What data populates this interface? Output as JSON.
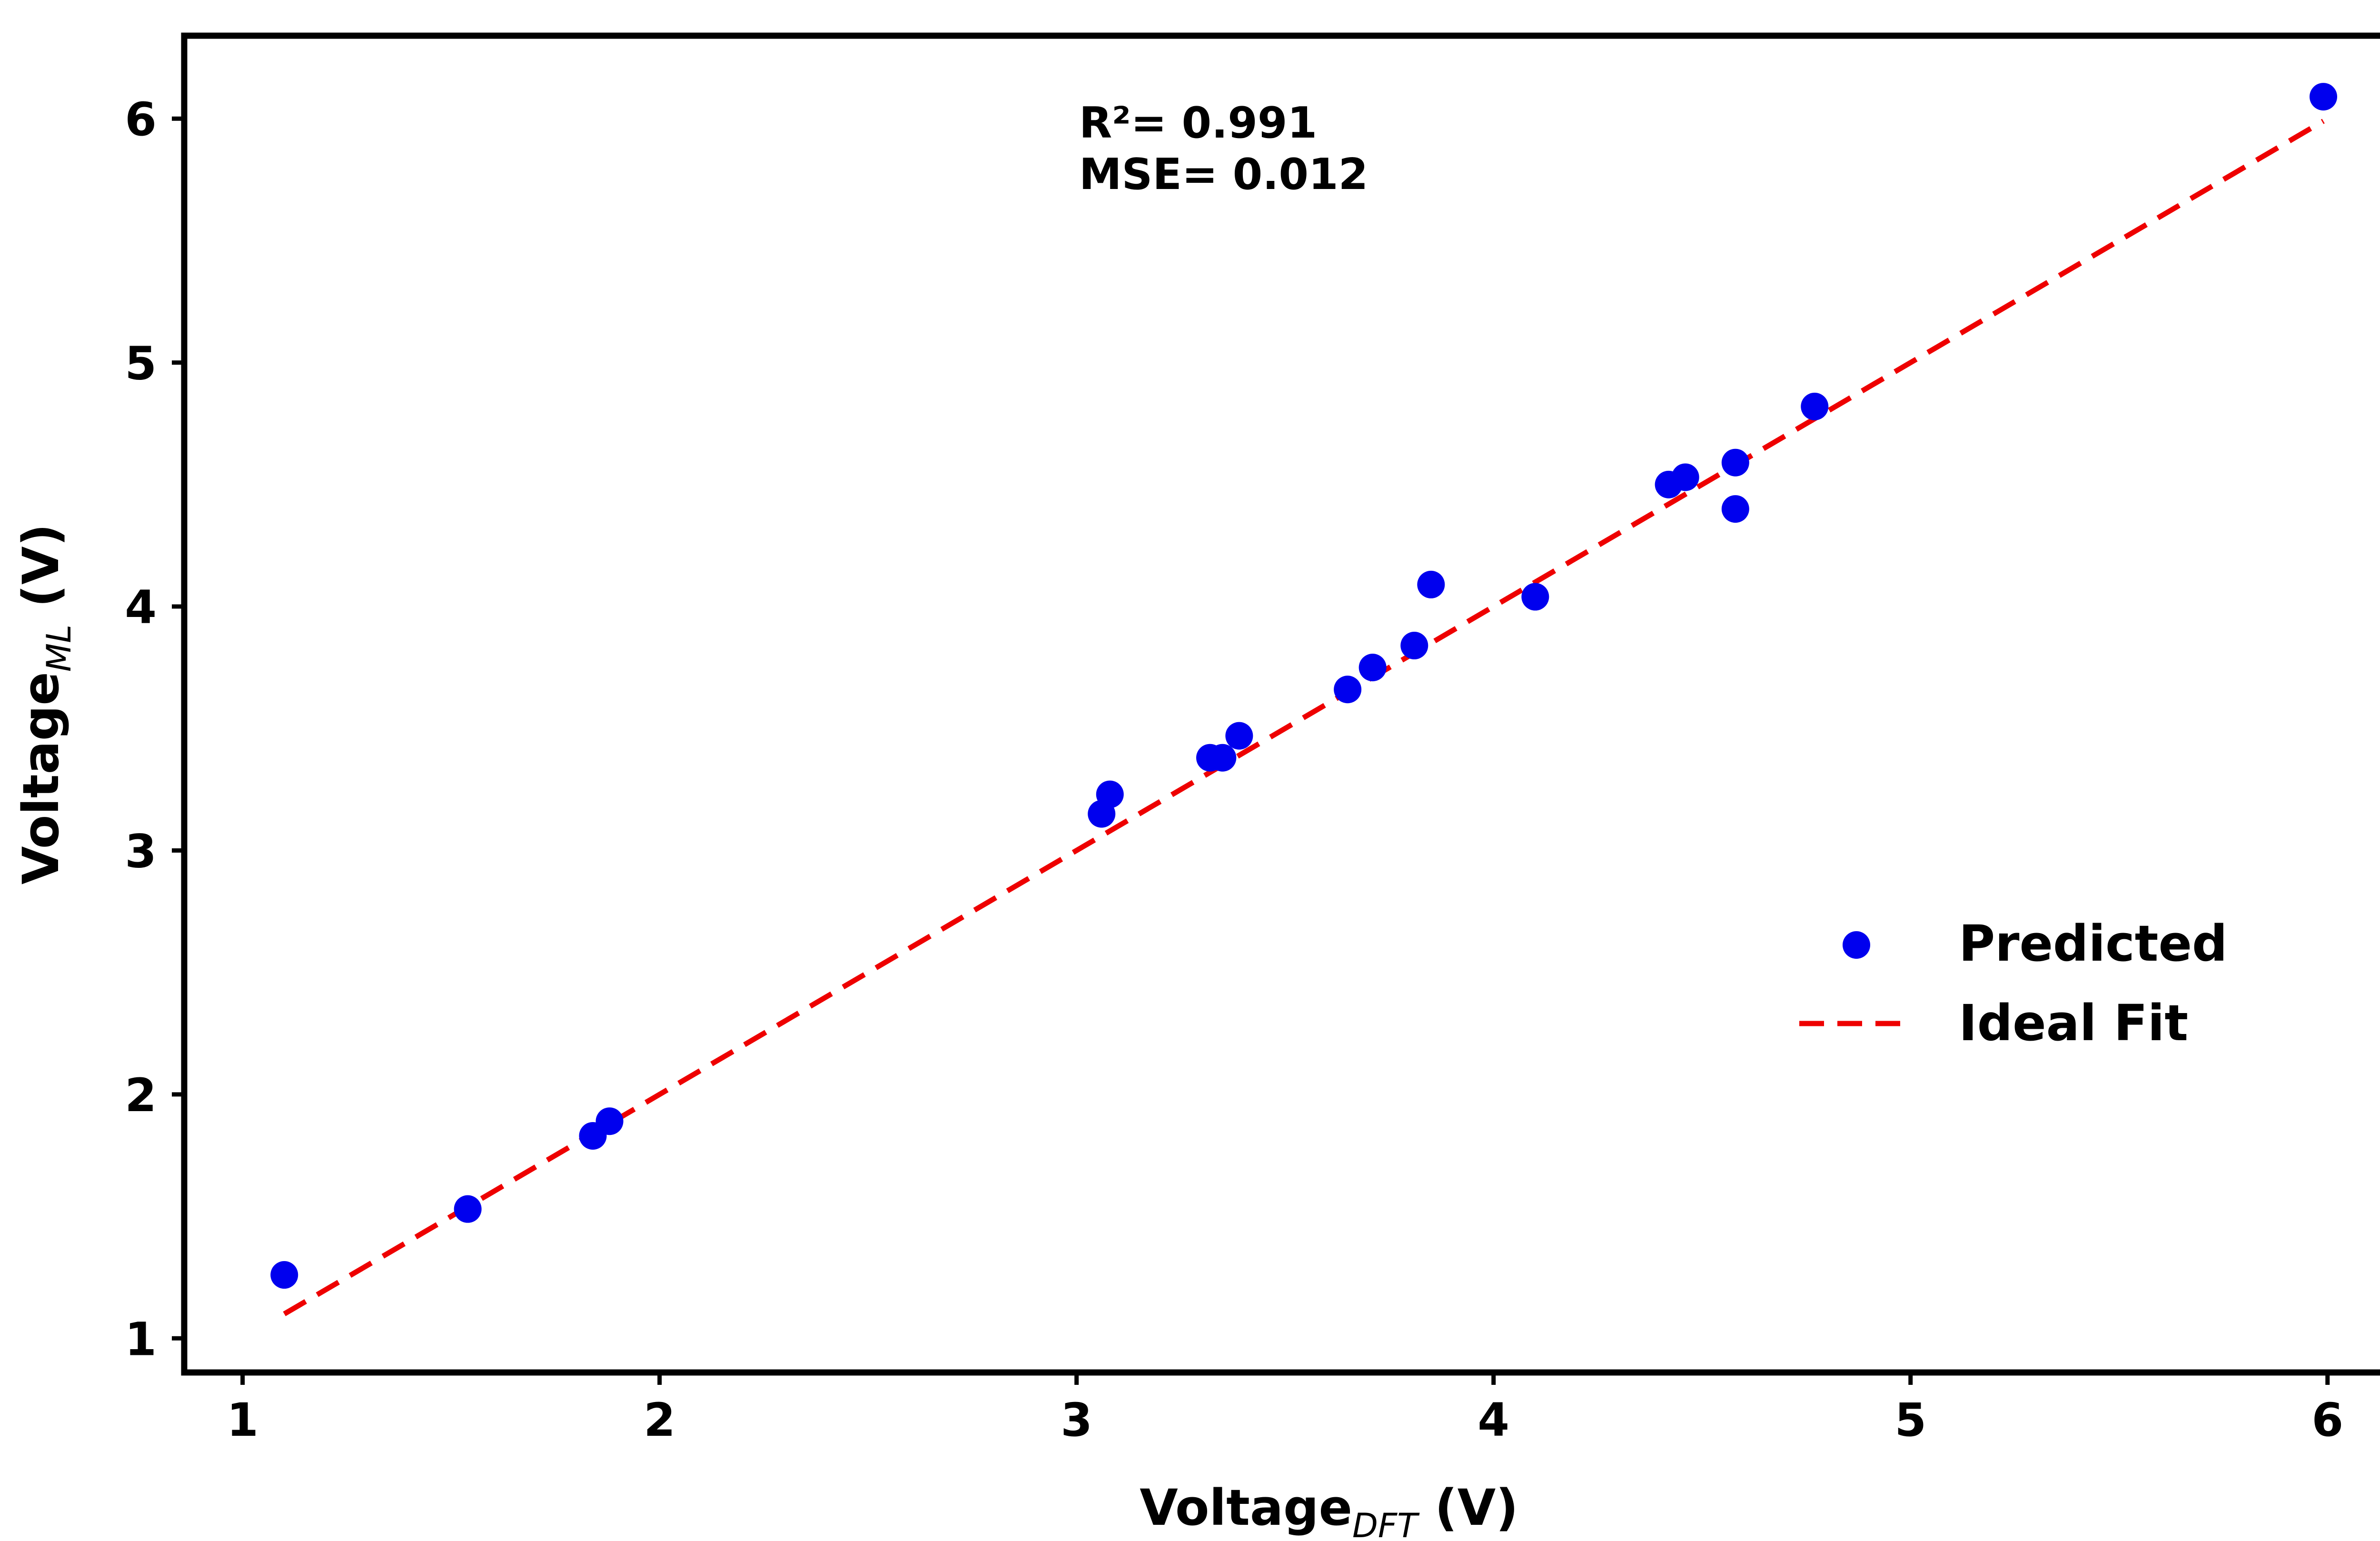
{
  "chart_data": {
    "type": "scatter",
    "xlabel": "Voltage",
    "xlabel_subscript": "DFT",
    "xlabel_unit": " (V)",
    "ylabel": "Voltage",
    "ylabel_subscript": "ML",
    "ylabel_unit": " (V)",
    "xlim": [
      0.86,
      6.24
    ],
    "ylim": [
      0.86,
      6.34
    ],
    "xticks": [
      1,
      2,
      3,
      4,
      5,
      6
    ],
    "yticks": [
      1,
      2,
      3,
      4,
      5,
      6
    ],
    "grid": false,
    "annotations": [
      "R²= 0.991",
      "MSE= 0.012"
    ],
    "series": [
      {
        "name": "Predicted",
        "kind": "scatter",
        "color": "#0000ee",
        "points": [
          [
            1.1,
            1.26
          ],
          [
            1.54,
            1.53
          ],
          [
            1.84,
            1.83
          ],
          [
            1.88,
            1.89
          ],
          [
            3.06,
            3.15
          ],
          [
            3.08,
            3.23
          ],
          [
            3.32,
            3.38
          ],
          [
            3.35,
            3.38
          ],
          [
            3.39,
            3.47
          ],
          [
            3.65,
            3.66
          ],
          [
            3.71,
            3.75
          ],
          [
            3.81,
            3.84
          ],
          [
            3.85,
            4.09
          ],
          [
            4.1,
            4.04
          ],
          [
            4.42,
            4.5
          ],
          [
            4.46,
            4.53
          ],
          [
            4.58,
            4.59
          ],
          [
            4.58,
            4.4
          ],
          [
            4.77,
            4.82
          ],
          [
            5.99,
            6.09
          ]
        ]
      },
      {
        "name": "Ideal Fit",
        "kind": "line",
        "style": "dashed",
        "color": "#ee0000",
        "x": [
          1.1,
          5.99
        ],
        "y": [
          1.1,
          5.99
        ]
      }
    ],
    "legend": {
      "position": "center-right",
      "entries": [
        "Predicted",
        "Ideal Fit"
      ]
    }
  }
}
